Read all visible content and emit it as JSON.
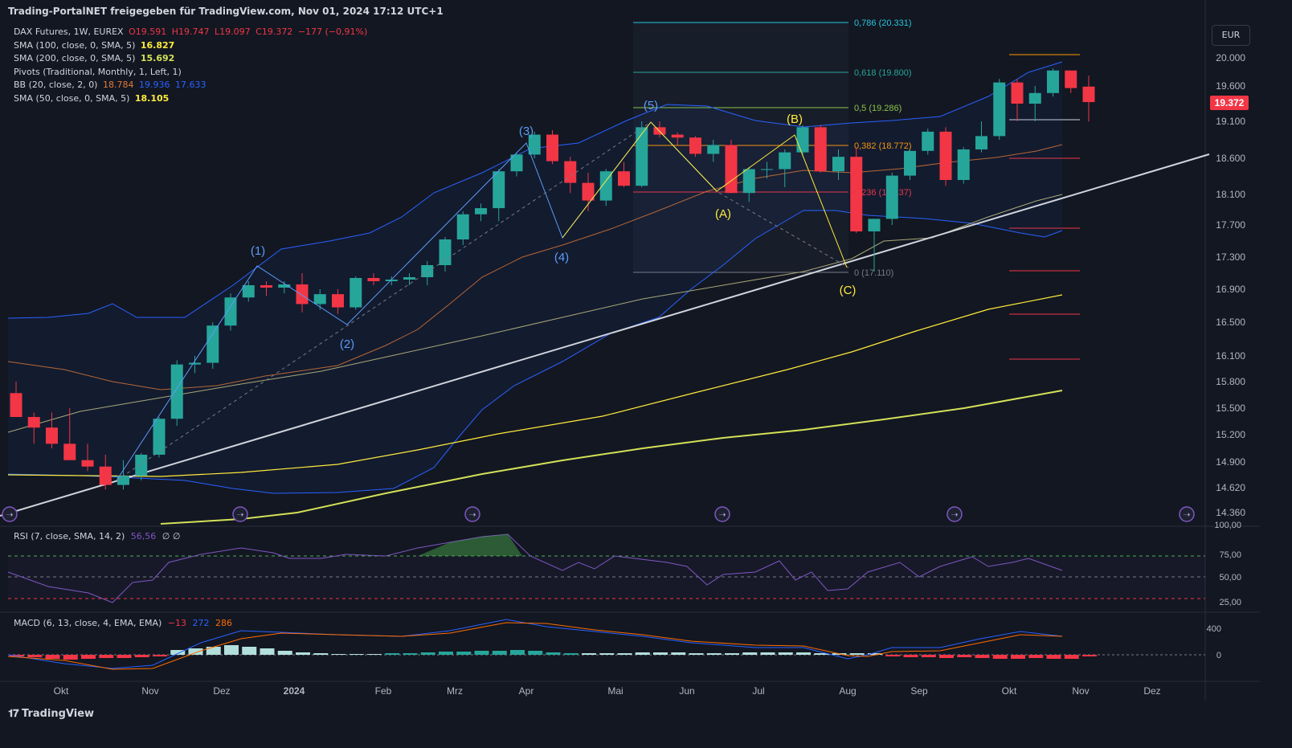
{
  "header": {
    "text": "Trading-PortalNET freigegeben für TradingView.com, Nov 01, 2024 17:12 UTC+1"
  },
  "legend": {
    "main": {
      "name": "DAX Futures, 1W, EUREX",
      "o": "O19.591",
      "h": "H19.747",
      "l": "L19.097",
      "c": "C19.372",
      "chg": "−177 (−0,91%)"
    },
    "sma100": {
      "label": "SMA (100, close, 0, SMA, 5)",
      "value": "16.827"
    },
    "sma200": {
      "label": "SMA (200, close, 0, SMA, 5)",
      "value": "15.692"
    },
    "pivots": {
      "label": "Pivots (Traditional, Monthly, 1, Left, 1)"
    },
    "bb": {
      "label": "BB (20, close, 2, 0)",
      "basis": "18.784",
      "upper": "19.936",
      "lower": "17.633"
    },
    "sma50": {
      "label": "SMA (50, close, 0, SMA, 5)",
      "value": "18.105"
    }
  },
  "currency": "EUR",
  "current_price": "19.372",
  "rsi": {
    "label": "RSI (7, close, SMA, 14, 2)",
    "value": "56,56",
    "extra": "∅ ∅"
  },
  "macd": {
    "label": "MACD (6, 13, close, 4, EMA, EMA)",
    "v1": "−13",
    "v2": "272",
    "v3": "286"
  },
  "footer": {
    "brand": "TradingView"
  },
  "colors": {
    "up": "#26a69a",
    "down": "#f23645",
    "bg": "#131722",
    "bb": "#2962ff",
    "sma50": "#e07b39",
    "sma100": "#ffeb3b",
    "sma200": "#d4e157"
  },
  "chart_data": {
    "type": "candlestick",
    "timeframe": "1W",
    "y_ticks": [
      "20.000",
      "19.600",
      "19.100",
      "18.600",
      "18.100",
      "17.700",
      "17.300",
      "16.900",
      "16.500",
      "16.100",
      "15.800",
      "15.500",
      "15.200",
      "14.900",
      "14.620",
      "14.360"
    ],
    "x_ticks": [
      "Okt",
      "Nov",
      "Dez",
      "2024",
      "Feb",
      "Mrz",
      "Apr",
      "Mai",
      "Jun",
      "Jul",
      "Aug",
      "Sep",
      "Okt",
      "Nov",
      "Dez"
    ],
    "candles": [
      {
        "o": 15.67,
        "h": 15.8,
        "l": 15.4,
        "c": 15.4
      },
      {
        "o": 15.4,
        "h": 15.45,
        "l": 15.1,
        "c": 15.28
      },
      {
        "o": 15.28,
        "h": 15.45,
        "l": 15.05,
        "c": 15.1
      },
      {
        "o": 15.1,
        "h": 15.5,
        "l": 14.92,
        "c": 14.92
      },
      {
        "o": 14.92,
        "h": 15.1,
        "l": 14.8,
        "c": 14.85
      },
      {
        "o": 14.85,
        "h": 14.98,
        "l": 14.6,
        "c": 14.65
      },
      {
        "o": 14.65,
        "h": 14.92,
        "l": 14.6,
        "c": 14.75
      },
      {
        "o": 14.75,
        "h": 15.0,
        "l": 14.7,
        "c": 14.98
      },
      {
        "o": 14.98,
        "h": 15.4,
        "l": 14.95,
        "c": 15.38
      },
      {
        "o": 15.38,
        "h": 16.05,
        "l": 15.3,
        "c": 16.0
      },
      {
        "o": 16.0,
        "h": 16.1,
        "l": 15.9,
        "c": 16.02
      },
      {
        "o": 16.02,
        "h": 16.5,
        "l": 15.95,
        "c": 16.46
      },
      {
        "o": 16.46,
        "h": 16.85,
        "l": 16.4,
        "c": 16.8
      },
      {
        "o": 16.8,
        "h": 17.0,
        "l": 16.75,
        "c": 16.95
      },
      {
        "o": 16.95,
        "h": 17.0,
        "l": 16.82,
        "c": 16.92
      },
      {
        "o": 16.92,
        "h": 17.0,
        "l": 16.85,
        "c": 16.96
      },
      {
        "o": 16.96,
        "h": 17.1,
        "l": 16.62,
        "c": 16.72
      },
      {
        "o": 16.72,
        "h": 16.9,
        "l": 16.65,
        "c": 16.84
      },
      {
        "o": 16.84,
        "h": 16.9,
        "l": 16.6,
        "c": 16.68
      },
      {
        "o": 16.68,
        "h": 17.06,
        "l": 16.65,
        "c": 17.04
      },
      {
        "o": 17.04,
        "h": 17.1,
        "l": 16.95,
        "c": 17.0
      },
      {
        "o": 17.0,
        "h": 17.06,
        "l": 16.95,
        "c": 17.02
      },
      {
        "o": 17.02,
        "h": 17.1,
        "l": 16.95,
        "c": 17.05
      },
      {
        "o": 17.05,
        "h": 17.25,
        "l": 16.95,
        "c": 17.2
      },
      {
        "o": 17.2,
        "h": 17.55,
        "l": 17.12,
        "c": 17.52
      },
      {
        "o": 17.52,
        "h": 17.88,
        "l": 17.45,
        "c": 17.84
      },
      {
        "o": 17.84,
        "h": 17.98,
        "l": 17.75,
        "c": 17.92
      },
      {
        "o": 17.92,
        "h": 18.45,
        "l": 17.75,
        "c": 18.42
      },
      {
        "o": 18.42,
        "h": 18.68,
        "l": 18.35,
        "c": 18.65
      },
      {
        "o": 18.65,
        "h": 18.96,
        "l": 18.6,
        "c": 18.92
      },
      {
        "o": 18.92,
        "h": 18.98,
        "l": 18.52,
        "c": 18.56
      },
      {
        "o": 18.56,
        "h": 18.62,
        "l": 18.12,
        "c": 18.26
      },
      {
        "o": 18.26,
        "h": 18.4,
        "l": 17.88,
        "c": 18.02
      },
      {
        "o": 18.02,
        "h": 18.45,
        "l": 17.95,
        "c": 18.42
      },
      {
        "o": 18.42,
        "h": 18.55,
        "l": 18.2,
        "c": 18.22
      },
      {
        "o": 18.22,
        "h": 19.1,
        "l": 18.2,
        "c": 19.02
      },
      {
        "o": 19.02,
        "h": 19.1,
        "l": 18.88,
        "c": 18.92
      },
      {
        "o": 18.92,
        "h": 18.95,
        "l": 18.78,
        "c": 18.88
      },
      {
        "o": 18.88,
        "h": 18.9,
        "l": 18.62,
        "c": 18.66
      },
      {
        "o": 18.66,
        "h": 18.85,
        "l": 18.55,
        "c": 18.78
      },
      {
        "o": 18.78,
        "h": 18.85,
        "l": 18.12,
        "c": 18.12
      },
      {
        "o": 18.12,
        "h": 18.48,
        "l": 18.0,
        "c": 18.45
      },
      {
        "o": 18.45,
        "h": 18.55,
        "l": 18.32,
        "c": 18.45
      },
      {
        "o": 18.45,
        "h": 18.72,
        "l": 18.2,
        "c": 18.68
      },
      {
        "o": 18.68,
        "h": 19.05,
        "l": 18.62,
        "c": 19.02
      },
      {
        "o": 19.02,
        "h": 19.05,
        "l": 18.4,
        "c": 18.42
      },
      {
        "o": 18.42,
        "h": 18.72,
        "l": 18.3,
        "c": 18.62
      },
      {
        "o": 18.62,
        "h": 18.75,
        "l": 17.6,
        "c": 17.62
      },
      {
        "o": 17.62,
        "h": 17.78,
        "l": 17.12,
        "c": 17.78
      },
      {
        "o": 17.78,
        "h": 18.4,
        "l": 17.7,
        "c": 18.36
      },
      {
        "o": 18.36,
        "h": 18.72,
        "l": 18.3,
        "c": 18.7
      },
      {
        "o": 18.7,
        "h": 19.0,
        "l": 18.65,
        "c": 18.96
      },
      {
        "o": 18.96,
        "h": 19.02,
        "l": 18.22,
        "c": 18.3
      },
      {
        "o": 18.3,
        "h": 18.75,
        "l": 18.25,
        "c": 18.72
      },
      {
        "o": 18.72,
        "h": 19.1,
        "l": 18.68,
        "c": 18.9
      },
      {
        "o": 18.9,
        "h": 19.7,
        "l": 18.85,
        "c": 19.65
      },
      {
        "o": 19.65,
        "h": 19.7,
        "l": 19.1,
        "c": 19.35
      },
      {
        "o": 19.35,
        "h": 19.6,
        "l": 19.1,
        "c": 19.5
      },
      {
        "o": 19.5,
        "h": 19.85,
        "l": 19.45,
        "c": 19.82
      },
      {
        "o": 19.82,
        "h": 19.82,
        "l": 19.5,
        "c": 19.57
      },
      {
        "o": 19.591,
        "h": 19.747,
        "l": 19.097,
        "c": 19.372
      }
    ],
    "fibonacci": [
      {
        "label": "0,786 (20.331)"
      },
      {
        "label": "0,618 (19.800)"
      },
      {
        "label": "0,5 (19.286)"
      },
      {
        "label": "0,382 (18.772)"
      },
      {
        "label": "0,236 (18.137)"
      },
      {
        "label": "0 (17.110)"
      }
    ],
    "waves": [
      "(1)",
      "(2)",
      "(3)",
      "(4)",
      "(5)",
      "(A)",
      "(B)",
      "(C)"
    ]
  }
}
